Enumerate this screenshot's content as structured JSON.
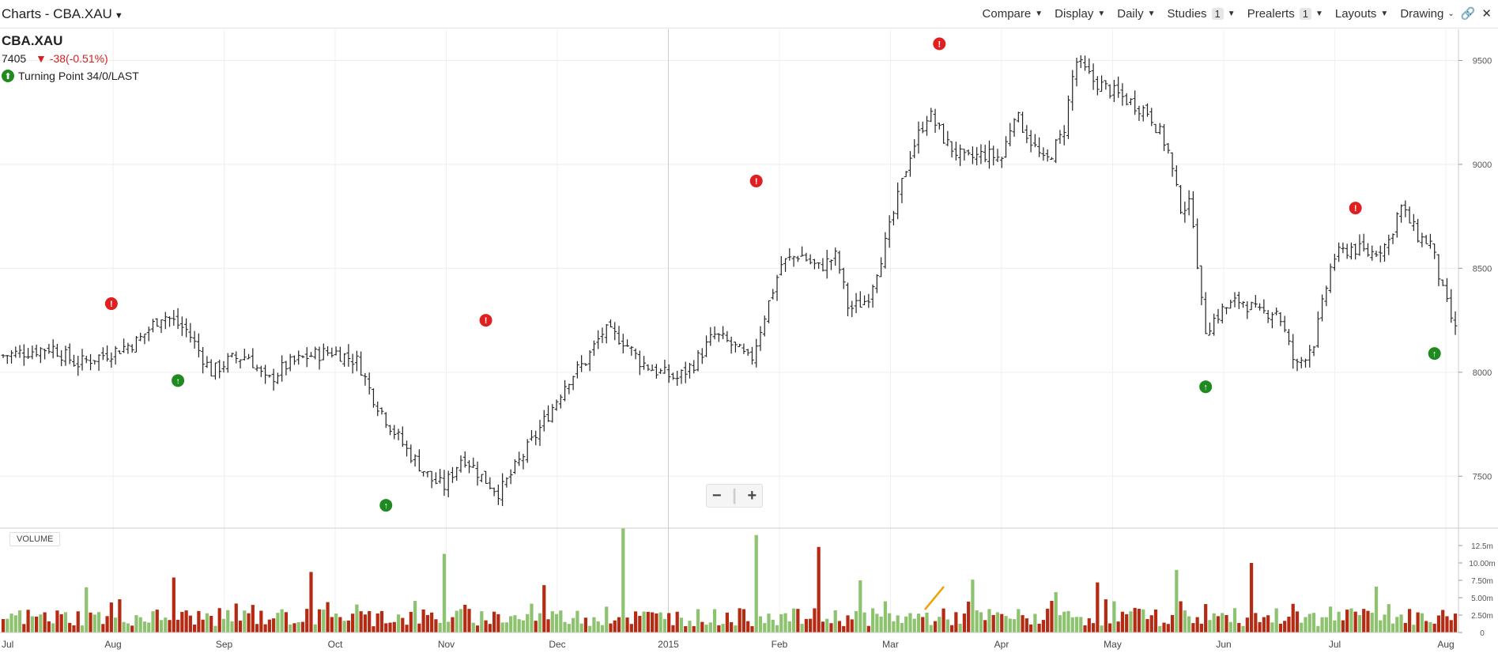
{
  "header": {
    "title": "Charts - CBA.XAU",
    "menus": [
      {
        "label": "Compare",
        "badge": ""
      },
      {
        "label": "Display",
        "badge": ""
      },
      {
        "label": "Daily",
        "badge": ""
      },
      {
        "label": "Studies",
        "badge": "1"
      },
      {
        "label": "Prealerts",
        "badge": "1"
      },
      {
        "label": "Layouts",
        "badge": ""
      },
      {
        "label": "Drawing",
        "badge": ""
      }
    ]
  },
  "legend": {
    "symbol": "CBA.XAU",
    "last": "7405",
    "change": "-38(-0.51%)",
    "study": "Turning Point 34/0/LAST"
  },
  "zoom": {
    "minus": "−",
    "plus": "+"
  },
  "volume_panel": {
    "label": "VOLUME"
  },
  "colors": {
    "up_volume": "#8dc26f",
    "down_volume": "#b52a12",
    "buy_signal": "#1f8a1f",
    "sell_signal": "#e02020",
    "bars": "#222222",
    "drawing_line": "#f0a000"
  },
  "chart_data": {
    "type": "ohlc",
    "symbol": "CBA.XAU",
    "interval": "Daily",
    "x_tick_labels": [
      "Jul",
      "Aug",
      "Sep",
      "Oct",
      "Nov",
      "Dec",
      "2015",
      "Feb",
      "Mar",
      "Apr",
      "May",
      "Jun",
      "Jul",
      "Aug"
    ],
    "price_axis": {
      "ticks": [
        7500,
        8000,
        8500,
        9000,
        9500
      ],
      "range": [
        7250,
        9650
      ]
    },
    "volume_axis": {
      "tick_labels": [
        "0",
        "2.50m",
        "5.00m",
        "7.50m",
        "10.00m",
        "12.5m"
      ],
      "range_m": [
        0,
        15
      ]
    },
    "close_path": [
      [
        0,
        8080
      ],
      [
        8,
        8120
      ],
      [
        12,
        8040
      ],
      [
        18,
        8100
      ],
      [
        22,
        8150
      ],
      [
        26,
        8280
      ],
      [
        30,
        8200
      ],
      [
        34,
        8000
      ],
      [
        37,
        8060
      ],
      [
        40,
        8080
      ],
      [
        43,
        7950
      ],
      [
        46,
        8030
      ],
      [
        50,
        8080
      ],
      [
        54,
        8100
      ],
      [
        58,
        8050
      ],
      [
        60,
        7900
      ],
      [
        63,
        7750
      ],
      [
        66,
        7620
      ],
      [
        70,
        7480
      ],
      [
        72,
        7450
      ],
      [
        75,
        7600
      ],
      [
        78,
        7500
      ],
      [
        81,
        7420
      ],
      [
        84,
        7560
      ],
      [
        87,
        7700
      ],
      [
        90,
        7850
      ],
      [
        92,
        7960
      ],
      [
        95,
        8050
      ],
      [
        98,
        8200
      ],
      [
        101,
        8160
      ],
      [
        104,
        8050
      ],
      [
        107,
        8000
      ],
      [
        110,
        7970
      ],
      [
        113,
        8050
      ],
      [
        116,
        8180
      ],
      [
        119,
        8130
      ],
      [
        122,
        8050
      ],
      [
        124,
        8250
      ],
      [
        127,
        8520
      ],
      [
        130,
        8570
      ],
      [
        133,
        8500
      ],
      [
        136,
        8560
      ],
      [
        138,
        8300
      ],
      [
        141,
        8350
      ],
      [
        144,
        8620
      ],
      [
        148,
        9050
      ],
      [
        151,
        9250
      ],
      [
        154,
        9100
      ],
      [
        157,
        9020
      ],
      [
        160,
        9050
      ],
      [
        163,
        9030
      ],
      [
        165,
        9250
      ],
      [
        168,
        9100
      ],
      [
        170,
        9000
      ],
      [
        173,
        9150
      ],
      [
        175,
        9500
      ],
      [
        178,
        9400
      ],
      [
        181,
        9350
      ],
      [
        184,
        9300
      ],
      [
        187,
        9250
      ],
      [
        190,
        9080
      ],
      [
        192,
        8800
      ],
      [
        194,
        8800
      ],
      [
        196,
        8200
      ],
      [
        199,
        8300
      ],
      [
        202,
        8350
      ],
      [
        205,
        8280
      ],
      [
        208,
        8300
      ],
      [
        211,
        8020
      ],
      [
        214,
        8150
      ],
      [
        217,
        8550
      ],
      [
        220,
        8600
      ],
      [
        223,
        8570
      ],
      [
        226,
        8620
      ],
      [
        228,
        8800
      ],
      [
        231,
        8650
      ],
      [
        233,
        8620
      ],
      [
        235,
        8380
      ],
      [
        237,
        8200
      ]
    ],
    "turning_points": [
      {
        "type": "sell",
        "x": 26,
        "price": 8330
      },
      {
        "type": "buy",
        "x": 42,
        "price": 7960
      },
      {
        "type": "sell",
        "x": 116,
        "price": 8250
      },
      {
        "type": "buy",
        "x": 92,
        "price": 7360
      },
      {
        "type": "sell",
        "x": 181,
        "price": 8920
      },
      {
        "type": "sell",
        "x": 225,
        "price": 9580
      },
      {
        "type": "buy",
        "x": 289,
        "price": 7930
      },
      {
        "type": "sell",
        "x": 325,
        "price": 8790
      },
      {
        "type": "buy",
        "x": 344,
        "price": 8090
      }
    ],
    "volume_spikes": [
      {
        "x": 149,
        "value_m": 15.0,
        "dir": "up"
      },
      {
        "x": 106,
        "value_m": 11.3,
        "dir": "up"
      },
      {
        "x": 181,
        "value_m": 14.0,
        "dir": "up"
      },
      {
        "x": 196,
        "value_m": 12.3,
        "dir": "down"
      },
      {
        "x": 74,
        "value_m": 8.7,
        "dir": "down"
      },
      {
        "x": 41,
        "value_m": 7.9,
        "dir": "down"
      },
      {
        "x": 206,
        "value_m": 7.5,
        "dir": "up"
      },
      {
        "x": 233,
        "value_m": 7.6,
        "dir": "up"
      },
      {
        "x": 282,
        "value_m": 9.0,
        "dir": "up"
      },
      {
        "x": 300,
        "value_m": 10.0,
        "dir": "down"
      },
      {
        "x": 263,
        "value_m": 7.2,
        "dir": "down"
      },
      {
        "x": 130,
        "value_m": 6.8,
        "dir": "down"
      },
      {
        "x": 20,
        "value_m": 6.5,
        "dir": "up"
      },
      {
        "x": 253,
        "value_m": 5.8,
        "dir": "up"
      },
      {
        "x": 330,
        "value_m": 6.6,
        "dir": "up"
      }
    ]
  }
}
